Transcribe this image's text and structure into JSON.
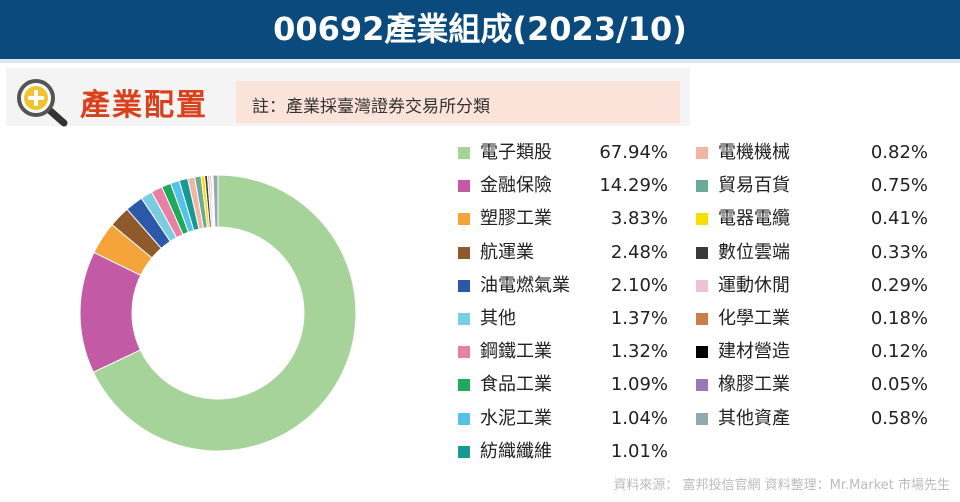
{
  "header": {
    "title": "00692產業組成(2023/10)"
  },
  "section": {
    "title": "產業配置",
    "note": "註：產業採臺灣證券交易所分類"
  },
  "source": "資料來源： 富邦投信官網    資料整理：Mr.Market 市場先生",
  "icons": {
    "section_icon": "magnifier-plus-icon"
  },
  "colors": {
    "header_bg": "#0b4a7d",
    "section_title": "#d9401c",
    "note_bg": "#fbe3d9"
  },
  "chart_data": {
    "type": "pie",
    "donut": true,
    "title": "",
    "categories": [
      "電子類股",
      "金融保險",
      "塑膠工業",
      "航運業",
      "油電燃氣業",
      "其他",
      "鋼鐵工業",
      "食品工業",
      "水泥工業",
      "紡織纖維",
      "電機機械",
      "貿易百貨",
      "電器電纜",
      "數位雲端",
      "運動休閒",
      "化學工業",
      "建材營造",
      "橡膠工業",
      "其他資產"
    ],
    "labels": [
      "67.94%",
      "14.29%",
      "3.83%",
      "2.48%",
      "2.10%",
      "1.37%",
      "1.32%",
      "1.09%",
      "1.04%",
      "1.01%",
      "0.82%",
      "0.75%",
      "0.41%",
      "0.33%",
      "0.29%",
      "0.18%",
      "0.12%",
      "0.05%",
      "0.58%"
    ],
    "values": [
      67.94,
      14.29,
      3.83,
      2.48,
      2.1,
      1.37,
      1.32,
      1.09,
      1.04,
      1.01,
      0.82,
      0.75,
      0.41,
      0.33,
      0.29,
      0.18,
      0.12,
      0.05,
      0.58
    ],
    "colors": [
      "#a6d39a",
      "#c25aa6",
      "#f4a43a",
      "#8e5a2b",
      "#2b58a8",
      "#79cde3",
      "#ea7fa4",
      "#1eaa5a",
      "#56c2ea",
      "#169a93",
      "#f1b6a2",
      "#6aaa96",
      "#f5e000",
      "#3a3a3a",
      "#efc1d7",
      "#cc7e4a",
      "#000000",
      "#9878b8",
      "#93a9b2"
    ],
    "legend_position": "right"
  }
}
